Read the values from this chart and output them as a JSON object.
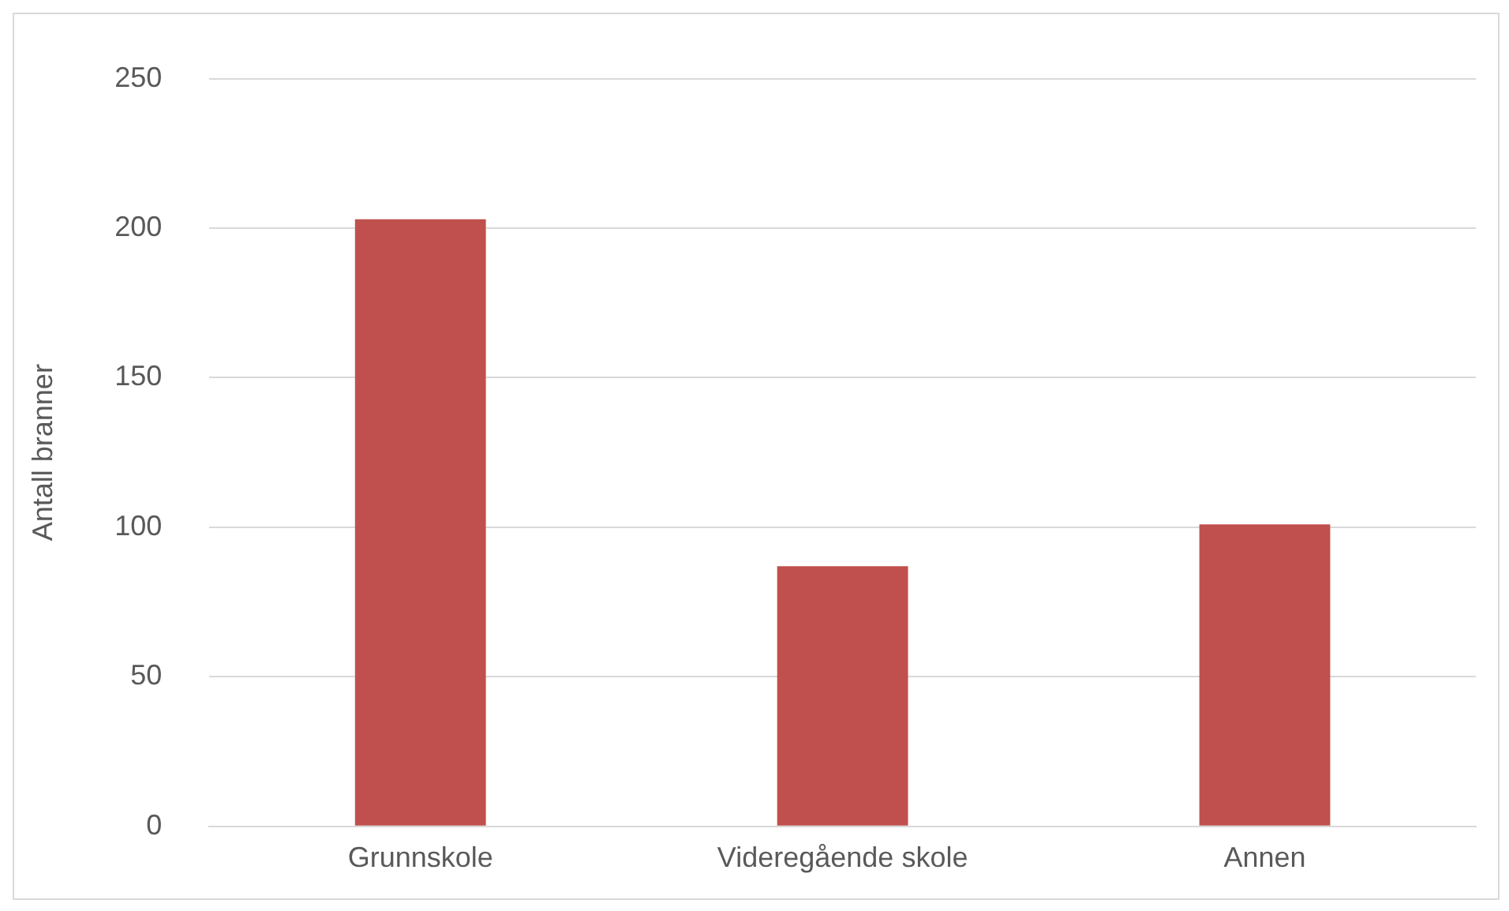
{
  "chart_data": {
    "type": "bar",
    "ylabel": "Antall branner",
    "categories": [
      "Grunnskole",
      "Videregående skole",
      "Annen"
    ],
    "values": [
      203,
      87,
      101
    ],
    "color": "#c0504d",
    "ylim": [
      0,
      250
    ],
    "yticks": [
      0,
      50,
      100,
      150,
      200,
      250
    ],
    "grid": "y"
  }
}
